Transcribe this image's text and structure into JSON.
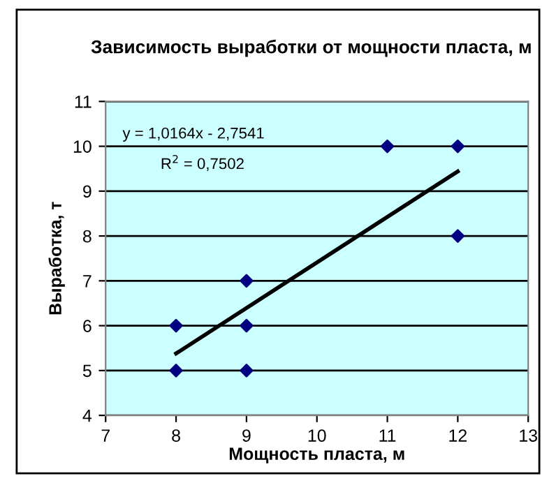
{
  "chart_data": {
    "type": "scatter",
    "title": "Зависимость выработки от мощности пласта, м",
    "xlabel": "Мощность пласта, м",
    "ylabel": "Выработка, т",
    "series": [
      {
        "color": "#000080",
        "marker": "diamond",
        "x": [
          8,
          8,
          9,
          9,
          9,
          11,
          12,
          12
        ],
        "values": [
          5,
          6,
          5,
          6,
          7,
          10,
          8,
          10
        ]
      },
      {
        "type": "line",
        "color": "#000000",
        "marker": "none",
        "x": [
          8,
          12
        ],
        "values": [
          5.38,
          9.44
        ]
      }
    ],
    "annotations": [
      "y = 1,0164x - 2,7541",
      "R$^{2}$ = 0,7502"
    ],
    "xlim": [
      7,
      13
    ],
    "xticks": [
      7,
      8,
      9,
      10,
      11,
      12,
      13
    ],
    "ylim": [
      4,
      11
    ],
    "yticks": [
      4,
      5,
      6,
      7,
      8,
      9,
      10,
      11
    ],
    "grid": "y",
    "legend": false
  }
}
